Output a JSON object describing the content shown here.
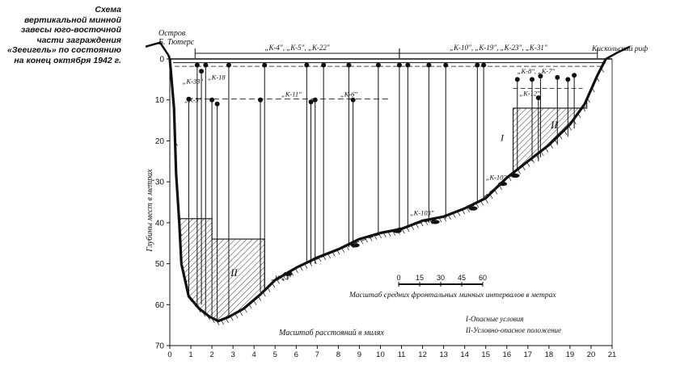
{
  "caption": {
    "lines": [
      "Схема",
      "вертикальной минной",
      "завесы юго-восточной",
      "части заграждения",
      "«Зееигель» по состоянию",
      "на конец октября 1942 г."
    ]
  },
  "chart_data": {
    "type": "diagram",
    "ylabel": "Глубины мест в метрах",
    "xlabel_inside": "Масштаб расстояний в милях",
    "x_ticks": [
      "0",
      "1",
      "2",
      "3",
      "4",
      "5",
      "6",
      "7",
      "8",
      "9",
      "10",
      "11",
      "12",
      "13",
      "14",
      "15",
      "16",
      "17",
      "18",
      "19",
      "20",
      "21"
    ],
    "y_ticks": [
      "0",
      "10",
      "20",
      "30",
      "40",
      "50",
      "60",
      "70"
    ],
    "xlim": [
      0,
      21
    ],
    "ylim": [
      0,
      70
    ],
    "left_label": {
      "line1": "Остров",
      "line2": "Б. Тютерс"
    },
    "right_label": "Кискольский риф",
    "groups": [
      {
        "text": "„К-4\", „К-5\", „К-22\"",
        "x1": 1.2,
        "x2": 10.9
      },
      {
        "text": "„К-10\", „К-19\", „К-23\", „К-31\"",
        "x1": 10.9,
        "x2": 20.3
      }
    ],
    "scale_bar": {
      "ticks": [
        "0",
        "15",
        "30",
        "45",
        "60"
      ],
      "label": "Масштаб средних фронтальных минных интервалов в метрах"
    },
    "legend": [
      "I-Опасные условия",
      "II-Условно-опасное положение"
    ],
    "zones": [
      {
        "roman": "II",
        "x1": 0.4,
        "x2": 4.5,
        "top": 44,
        "step_x": 2.0,
        "step_top": 39
      },
      {
        "roman": "II",
        "x1": 16.3,
        "x2": 19.8,
        "top": 12
      }
    ],
    "zone_marker_I": {
      "text": "I",
      "x": 15.7,
      "y": 20
    },
    "mine_labels": [
      {
        "text": "„К-33\"",
        "x": 0.6,
        "y": 6.0
      },
      {
        "text": "„К-18",
        "x": 1.8,
        "y": 5.0
      },
      {
        "text": "„К-3\"",
        "x": 0.7,
        "y": 10.5
      },
      {
        "text": "„К-11\"",
        "x": 5.3,
        "y": 9.2
      },
      {
        "text": "„К-6\"",
        "x": 8.1,
        "y": 9.2
      },
      {
        "text": "„К-8\", „К-7\"",
        "x": 16.5,
        "y": 3.5
      },
      {
        "text": "„К-12\"",
        "x": 16.6,
        "y": 9.0
      },
      {
        "text": "„К-103\"",
        "x": 11.4,
        "y": 38.2
      },
      {
        "text": "„К-102\"",
        "x": 15.0,
        "y": 29.5
      },
      {
        "text": "„К-24\"",
        "x": 4.8,
        "y": 54.0
      }
    ],
    "profile": [
      [
        0.0,
        0
      ],
      [
        0.2,
        12
      ],
      [
        0.3,
        28
      ],
      [
        0.45,
        40
      ],
      [
        0.55,
        50
      ],
      [
        0.9,
        58
      ],
      [
        1.4,
        61
      ],
      [
        1.9,
        63
      ],
      [
        2.3,
        64
      ],
      [
        2.8,
        63
      ],
      [
        3.5,
        61
      ],
      [
        4.3,
        57.5
      ],
      [
        5.0,
        54
      ],
      [
        6.0,
        51
      ],
      [
        7.0,
        48.5
      ],
      [
        8.0,
        46.5
      ],
      [
        9.0,
        44
      ],
      [
        10.0,
        42.5
      ],
      [
        11.0,
        41.5
      ],
      [
        12.0,
        39.5
      ],
      [
        13.0,
        38.5
      ],
      [
        14.0,
        36.5
      ],
      [
        15.0,
        34
      ],
      [
        15.6,
        31
      ],
      [
        16.0,
        29
      ],
      [
        17.0,
        25
      ],
      [
        18.0,
        21
      ],
      [
        19.0,
        16
      ],
      [
        19.7,
        11
      ],
      [
        20.3,
        4
      ],
      [
        20.7,
        0
      ]
    ],
    "mines": [
      {
        "x": 0.9,
        "y": 9.8,
        "b": 58
      },
      {
        "x": 1.3,
        "y": 1.5,
        "b": 60
      },
      {
        "x": 1.5,
        "y": 3.0,
        "b": 60
      },
      {
        "x": 1.7,
        "y": 1.5,
        "b": 62
      },
      {
        "x": 2.0,
        "y": 10,
        "b": 63
      },
      {
        "x": 2.25,
        "y": 11,
        "b": 64
      },
      {
        "x": 2.8,
        "y": 1.5,
        "b": 63
      },
      {
        "x": 4.3,
        "y": 10,
        "b": 57
      },
      {
        "x": 4.5,
        "y": 1.5,
        "b": 56
      },
      {
        "x": 6.5,
        "y": 1.5,
        "b": 50
      },
      {
        "x": 6.7,
        "y": 10.5,
        "b": 50
      },
      {
        "x": 6.9,
        "y": 10,
        "b": 50
      },
      {
        "x": 7.3,
        "y": 1.5,
        "b": 48
      },
      {
        "x": 8.5,
        "y": 1.5,
        "b": 46
      },
      {
        "x": 8.7,
        "y": 10,
        "b": 46
      },
      {
        "x": 9.9,
        "y": 1.5,
        "b": 43
      },
      {
        "x": 10.9,
        "y": 1.5,
        "b": 42
      },
      {
        "x": 11.3,
        "y": 1.5,
        "b": 41
      },
      {
        "x": 12.3,
        "y": 1.5,
        "b": 40
      },
      {
        "x": 13.1,
        "y": 1.5,
        "b": 39
      },
      {
        "x": 14.6,
        "y": 1.5,
        "b": 35
      },
      {
        "x": 14.9,
        "y": 1.5,
        "b": 34
      },
      {
        "x": 16.5,
        "y": 5.0,
        "b": 27
      },
      {
        "x": 17.2,
        "y": 5.0,
        "b": 25
      },
      {
        "x": 17.6,
        "y": 4.2,
        "b": 24
      },
      {
        "x": 18.4,
        "y": 4.5,
        "b": 21
      },
      {
        "x": 18.9,
        "y": 5.0,
        "b": 19
      },
      {
        "x": 19.2,
        "y": 4.0,
        "b": 17
      },
      {
        "x": 17.5,
        "y": 9.5,
        "b": 25
      }
    ],
    "anchors": [
      [
        5.6,
        52.5
      ],
      [
        8.8,
        45.5
      ],
      [
        10.8,
        42
      ],
      [
        12.6,
        39.8
      ],
      [
        14.4,
        36.5
      ],
      [
        15.8,
        30.5
      ],
      [
        16.4,
        28.5
      ]
    ]
  }
}
